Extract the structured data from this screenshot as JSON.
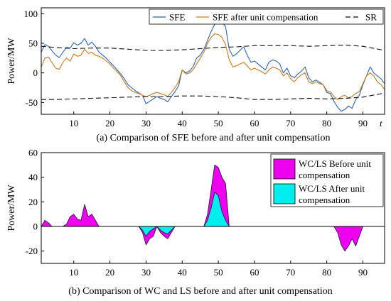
{
  "chart_data": [
    {
      "type": "line",
      "caption": "(a) Comparison of SFE before and after unit compensation",
      "ylabel": "Power/MW",
      "xlabel": "t",
      "xlim": [
        1,
        96
      ],
      "ylim": [
        -70,
        110
      ],
      "xticks": [
        10,
        20,
        30,
        40,
        50,
        60,
        70,
        80,
        90
      ],
      "yticks": [
        100,
        50,
        0,
        -50
      ],
      "legend_position": "top-right",
      "series": [
        {
          "name": "SFE",
          "color": "#2f63ad",
          "style": "solid",
          "x": [
            1,
            2,
            3,
            4,
            5,
            6,
            7,
            8,
            9,
            10,
            11,
            12,
            13,
            14,
            15,
            16,
            17,
            18,
            19,
            20,
            21,
            22,
            23,
            24,
            25,
            26,
            27,
            28,
            29,
            30,
            31,
            32,
            33,
            34,
            35,
            36,
            37,
            38,
            39,
            40,
            41,
            42,
            43,
            44,
            45,
            46,
            47,
            48,
            49,
            50,
            51,
            52,
            53,
            54,
            55,
            56,
            57,
            58,
            59,
            60,
            61,
            62,
            63,
            64,
            65,
            66,
            67,
            68,
            69,
            70,
            71,
            72,
            73,
            74,
            75,
            76,
            77,
            78,
            79,
            80,
            81,
            82,
            83,
            84,
            85,
            86,
            87,
            88,
            89,
            90,
            91,
            92,
            93,
            94,
            95,
            96
          ],
          "values": [
            35,
            48,
            45,
            37,
            30,
            26,
            35,
            43,
            42,
            51,
            47,
            50,
            58,
            47,
            52,
            45,
            35,
            30,
            25,
            18,
            12,
            5,
            -2,
            -10,
            -20,
            -25,
            -30,
            -34,
            -38,
            -52,
            -48,
            -44,
            -40,
            -43,
            -45,
            -49,
            -40,
            -32,
            -22,
            5,
            0,
            3,
            10,
            25,
            30,
            40,
            55,
            70,
            82,
            88,
            86,
            78,
            40,
            28,
            32,
            38,
            44,
            30,
            18,
            20,
            15,
            10,
            5,
            18,
            22,
            20,
            15,
            0,
            8,
            -5,
            -8,
            -2,
            3,
            10,
            -8,
            -15,
            -12,
            -16,
            -20,
            -33,
            -35,
            -48,
            -58,
            -65,
            -62,
            -56,
            -60,
            -45,
            -38,
            -20,
            -5,
            10,
            0,
            -5,
            -10,
            -18
          ],
          "width": 1.1
        },
        {
          "name": "SFE after unit compensation",
          "color": "#c97a1f",
          "style": "solid",
          "x": [
            1,
            2,
            3,
            4,
            5,
            6,
            7,
            8,
            9,
            10,
            11,
            12,
            13,
            14,
            15,
            16,
            17,
            18,
            19,
            20,
            21,
            22,
            23,
            24,
            25,
            26,
            27,
            28,
            29,
            30,
            31,
            32,
            33,
            34,
            35,
            36,
            37,
            38,
            39,
            40,
            41,
            42,
            43,
            44,
            45,
            46,
            47,
            48,
            49,
            50,
            51,
            52,
            53,
            54,
            55,
            56,
            57,
            58,
            59,
            60,
            61,
            62,
            63,
            64,
            65,
            66,
            67,
            68,
            69,
            70,
            71,
            72,
            73,
            74,
            75,
            76,
            77,
            78,
            79,
            80,
            81,
            82,
            83,
            84,
            85,
            86,
            87,
            88,
            89,
            90,
            91,
            92,
            93,
            94,
            95,
            96
          ],
          "values": [
            10,
            25,
            27,
            17,
            8,
            6,
            18,
            25,
            20,
            32,
            28,
            30,
            40,
            33,
            35,
            30,
            28,
            25,
            20,
            15,
            8,
            2,
            -5,
            -15,
            -25,
            -30,
            -33,
            -35,
            -38,
            -40,
            -38,
            -35,
            -33,
            -35,
            -37,
            -40,
            -33,
            -25,
            -15,
            5,
            -2,
            0,
            5,
            15,
            25,
            35,
            50,
            60,
            66,
            65,
            60,
            48,
            22,
            10,
            12,
            15,
            18,
            12,
            5,
            8,
            5,
            2,
            -2,
            5,
            10,
            8,
            5,
            -5,
            0,
            -10,
            -15,
            -8,
            -3,
            0,
            -15,
            -18,
            -15,
            -18,
            -20,
            -30,
            -32,
            -40,
            -45,
            -40,
            -38,
            -42,
            -40,
            -35,
            -32,
            -18,
            -5,
            0,
            -5,
            -15,
            -20,
            -28
          ],
          "width": 1.1
        },
        {
          "name": "SR",
          "color": "#111111",
          "style": "dashed",
          "x": [
            1,
            5,
            10,
            15,
            20,
            25,
            30,
            35,
            40,
            45,
            50,
            55,
            60,
            65,
            70,
            75,
            80,
            85,
            90,
            96
          ],
          "values": [
            45,
            43,
            41,
            42,
            42,
            40,
            38,
            38,
            39,
            41,
            43,
            44,
            46,
            46,
            46,
            45,
            46,
            47,
            45,
            38
          ],
          "lower": [
            -45,
            -45,
            -44,
            -43,
            -42,
            -41,
            -40,
            -40,
            -39,
            -39,
            -40,
            -42,
            -45,
            -45,
            -44,
            -43,
            -44,
            -43,
            -41,
            -34
          ],
          "width": 1.1
        }
      ]
    },
    {
      "type": "area",
      "caption": "(b) Comparison of WC and LS before and after unit compensation",
      "ylabel": "Power/MW",
      "xlim": [
        1,
        96
      ],
      "ylim": [
        -30,
        60
      ],
      "xticks": [
        10,
        20,
        30,
        40,
        50,
        60,
        70,
        80,
        90
      ],
      "yticks": [
        60,
        40,
        20,
        0,
        -20
      ],
      "legend_position": "top-right",
      "series": [
        {
          "name": "WC/LS Before unit compensation",
          "legend_lines": [
            "WC/LS Before unit",
            "compensation"
          ],
          "color": "#ee00ee",
          "x": [
            1,
            2,
            3,
            4,
            5,
            6,
            7,
            8,
            9,
            10,
            11,
            12,
            13,
            14,
            15,
            16,
            17,
            18,
            19,
            20,
            21,
            22,
            23,
            24,
            25,
            26,
            27,
            28,
            29,
            30,
            31,
            32,
            33,
            34,
            35,
            36,
            37,
            38,
            39,
            40,
            41,
            42,
            43,
            44,
            45,
            46,
            47,
            48,
            49,
            50,
            51,
            52,
            53,
            54,
            55,
            56,
            57,
            58,
            59,
            60,
            61,
            62,
            63,
            64,
            65,
            66,
            67,
            68,
            69,
            70,
            71,
            72,
            73,
            74,
            75,
            76,
            77,
            78,
            79,
            80,
            81,
            82,
            83,
            84,
            85,
            86,
            87,
            88,
            89,
            90,
            91,
            92,
            93,
            94,
            95,
            96
          ],
          "values": [
            0,
            5,
            3,
            0,
            0,
            0,
            0,
            2,
            8,
            10,
            6,
            5,
            18,
            8,
            10,
            5,
            0,
            0,
            0,
            0,
            0,
            0,
            0,
            0,
            0,
            0,
            0,
            0,
            -5,
            -15,
            -10,
            -8,
            0,
            -5,
            -8,
            -10,
            -5,
            0,
            0,
            0,
            0,
            0,
            0,
            0,
            0,
            0,
            10,
            30,
            50,
            48,
            40,
            35,
            0,
            0,
            0,
            0,
            0,
            0,
            0,
            0,
            0,
            0,
            0,
            0,
            0,
            0,
            0,
            0,
            0,
            0,
            0,
            0,
            0,
            0,
            0,
            0,
            0,
            0,
            0,
            0,
            0,
            0,
            -5,
            -15,
            -20,
            -16,
            -10,
            -16,
            -8,
            0,
            0,
            0,
            0,
            0,
            0,
            0
          ]
        },
        {
          "name": "WC/LS After unit compensation",
          "legend_lines": [
            "WC/LS After unit",
            "compensation"
          ],
          "color": "#00eeee",
          "x": [
            1,
            2,
            3,
            4,
            5,
            6,
            7,
            8,
            9,
            10,
            11,
            12,
            13,
            14,
            15,
            16,
            17,
            18,
            19,
            20,
            21,
            22,
            23,
            24,
            25,
            26,
            27,
            28,
            29,
            30,
            31,
            32,
            33,
            34,
            35,
            36,
            37,
            38,
            39,
            40,
            41,
            42,
            43,
            44,
            45,
            46,
            47,
            48,
            49,
            50,
            51,
            52,
            53,
            54,
            55,
            56,
            57,
            58,
            59,
            60,
            61,
            62,
            63,
            64,
            65,
            66,
            67,
            68,
            69,
            70,
            71,
            72,
            73,
            74,
            75,
            76,
            77,
            78,
            79,
            80,
            81,
            82,
            83,
            84,
            85,
            86,
            87,
            88,
            89,
            90,
            91,
            92,
            93,
            94,
            95,
            96
          ],
          "values": [
            0,
            0,
            0,
            0,
            0,
            0,
            0,
            0,
            0,
            0,
            0,
            0,
            0,
            0,
            0,
            0,
            0,
            0,
            0,
            0,
            0,
            0,
            0,
            0,
            0,
            0,
            0,
            0,
            -3,
            -8,
            -4,
            -2,
            0,
            -3,
            -5,
            -6,
            -3,
            0,
            0,
            0,
            0,
            0,
            0,
            0,
            0,
            0,
            5,
            15,
            28,
            25,
            12,
            5,
            0,
            0,
            0,
            0,
            0,
            0,
            0,
            0,
            0,
            0,
            0,
            0,
            0,
            0,
            0,
            0,
            0,
            0,
            0,
            0,
            0,
            0,
            0,
            0,
            0,
            0,
            0,
            0,
            0,
            0,
            0,
            0,
            0,
            0,
            0,
            0,
            0,
            0,
            0,
            0,
            0,
            0,
            0,
            0
          ]
        }
      ]
    }
  ]
}
